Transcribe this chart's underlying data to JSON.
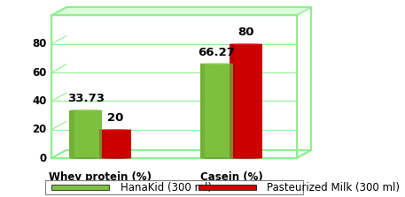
{
  "categories": [
    "Whey protein (%)",
    "Casein (%)"
  ],
  "series": [
    {
      "label": "HanaKid (300 ml)",
      "values": [
        33.73,
        66.27
      ],
      "color": "#7DC040",
      "top_color": "#9FD865",
      "dark_color": "#5A9020"
    },
    {
      "label": "Pasteurized Milk (300 ml)",
      "values": [
        20,
        80
      ],
      "color": "#CC0000",
      "top_color": "#EE3333",
      "dark_color": "#990000"
    }
  ],
  "ylim": [
    0,
    100
  ],
  "yticks": [
    0,
    20,
    40,
    60,
    80
  ],
  "background_color": "#ffffff",
  "grid_color": "#90EE90",
  "border_color": "#90EE90",
  "label_fontsize": 8.5,
  "tick_fontsize": 8.5,
  "legend_fontsize": 8.5,
  "value_fontsize": 9.5,
  "figsize": [
    4.57,
    2.23
  ],
  "dpi": 100
}
